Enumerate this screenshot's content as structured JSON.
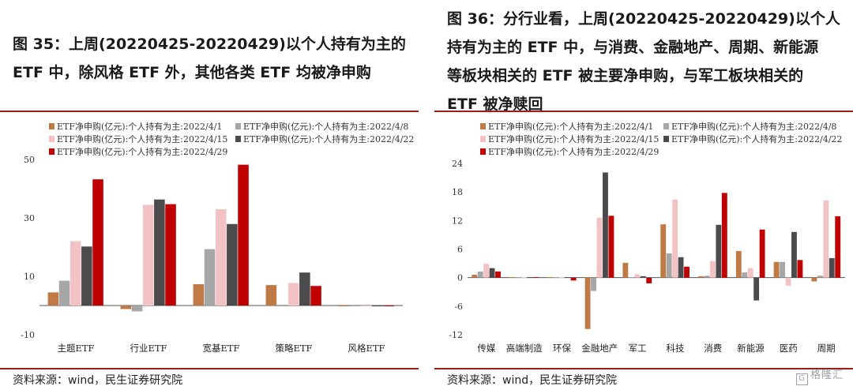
{
  "left": {
    "title_lines": [
      "图 35：上周(20220425-20220429)以个人持有为主的",
      "ETF 中，除风格 ETF 外，其他各类 ETF 均被净申购"
    ],
    "source": "资料来源：wind，民生证券研究院"
  },
  "right": {
    "title_lines": [
      "图 36：分行业看，上周(20220425-20220429)以个人",
      "持有为主的 ETF 中，与消费、金融地产、周期、新能源",
      "等板块相关的  ETF  被主要净申购，与军工板块相关的",
      "ETF 被净赎回"
    ],
    "source": "资料来源：wind，民生证券研究院"
  },
  "watermark": {
    "text": "格隆汇",
    "box": "G"
  },
  "colors": {
    "s1": "#c07a45",
    "s2": "#a6a6a6",
    "s3": "#f2c2c4",
    "s4": "#4b4b4d",
    "s5": "#c00000",
    "rule": "#9a1b1b"
  },
  "chart_data": [
    {
      "type": "bar",
      "categories": [
        "主题ETF",
        "行业ETF",
        "宽基ETF",
        "策略ETF",
        "风格ETF"
      ],
      "series": [
        {
          "name": "ETF净申购(亿元):个人持有为主:2022/4/1",
          "values": [
            4.5,
            -1.2,
            7.3,
            7.0,
            -0.2
          ]
        },
        {
          "name": "ETF净申购(亿元):个人持有为主:2022/4/8",
          "values": [
            8.5,
            -2.0,
            19.3,
            -0.2,
            -0.2
          ]
        },
        {
          "name": "ETF净申购(亿元):个人持有为主:2022/4/15",
          "values": [
            22.0,
            34.5,
            33.0,
            7.7,
            -0.2
          ]
        },
        {
          "name": "ETF净申购(亿元):个人持有为主:2022/4/22",
          "values": [
            20.2,
            36.3,
            27.9,
            11.3,
            -0.2
          ]
        },
        {
          "name": "ETF净申购(亿元):个人持有为主:2022/4/29",
          "values": [
            43.2,
            34.7,
            48.2,
            6.7,
            -0.2
          ]
        }
      ],
      "yticks": [
        -10,
        10,
        30,
        50
      ],
      "ylim": [
        -10,
        50
      ],
      "legend_position": "top"
    },
    {
      "type": "bar",
      "categories": [
        "传媒",
        "高端制造",
        "环保",
        "金融地产",
        "军工",
        "科技",
        "消费",
        "新能源",
        "医药",
        "周期"
      ],
      "series": [
        {
          "name": "ETF净申购(亿元):个人持有为主:2022/4/1",
          "values": [
            0.6,
            0.1,
            0.1,
            -10.8,
            3.1,
            11.2,
            0.3,
            5.6,
            3.3,
            -0.8
          ]
        },
        {
          "name": "ETF净申购(亿元):个人持有为主:2022/4/8",
          "values": [
            1.3,
            0.1,
            0.1,
            -2.8,
            0.1,
            5.1,
            0.4,
            1.1,
            3.3,
            0.4
          ]
        },
        {
          "name": "ETF净申购(亿元):个人持有为主:2022/4/15",
          "values": [
            2.9,
            0.1,
            0.1,
            12.6,
            0.7,
            16.4,
            3.5,
            2.0,
            -1.7,
            16.2
          ]
        },
        {
          "name": "ETF净申购(亿元):个人持有为主:2022/4/22",
          "values": [
            2.0,
            0.1,
            0.1,
            22.1,
            0.3,
            4.3,
            11.1,
            -4.8,
            9.6,
            4.1
          ]
        },
        {
          "name": "ETF净申购(亿元):个人持有为主:2022/4/29",
          "values": [
            1.3,
            0.1,
            -0.6,
            13.0,
            -1.2,
            2.3,
            17.8,
            10.1,
            3.7,
            12.9
          ]
        }
      ],
      "yticks": [
        -12,
        -6,
        0,
        6,
        12,
        18,
        24
      ],
      "ylim": [
        -12,
        24
      ],
      "legend_position": "top"
    }
  ]
}
